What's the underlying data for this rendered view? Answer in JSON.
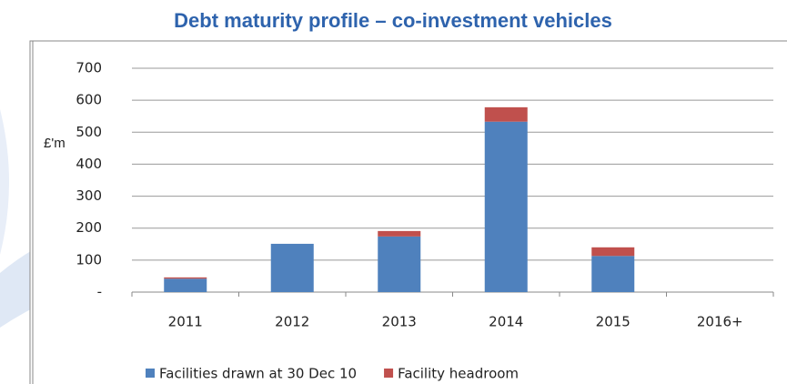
{
  "chart_data": {
    "type": "stacked_bar",
    "title": "Debt maturity profile – co-investment vehicles",
    "y_label": "£'m",
    "categories": [
      "2011",
      "2012",
      "2013",
      "2014",
      "2015",
      "2016+"
    ],
    "series": [
      {
        "name": "Facilities drawn at 30 Dec 10",
        "color": "#4f81bd",
        "values": [
          42,
          151,
          174,
          533,
          113,
          0
        ]
      },
      {
        "name": "Facility headroom",
        "color": "#c0504d",
        "values": [
          4,
          0,
          17,
          45,
          27,
          0
        ]
      }
    ],
    "ylim": [
      0,
      700
    ],
    "yticks": [
      {
        "value": 0,
        "label": "-"
      },
      100,
      200,
      300,
      400,
      500,
      600,
      700
    ],
    "grid": true,
    "legend": "bottom"
  }
}
